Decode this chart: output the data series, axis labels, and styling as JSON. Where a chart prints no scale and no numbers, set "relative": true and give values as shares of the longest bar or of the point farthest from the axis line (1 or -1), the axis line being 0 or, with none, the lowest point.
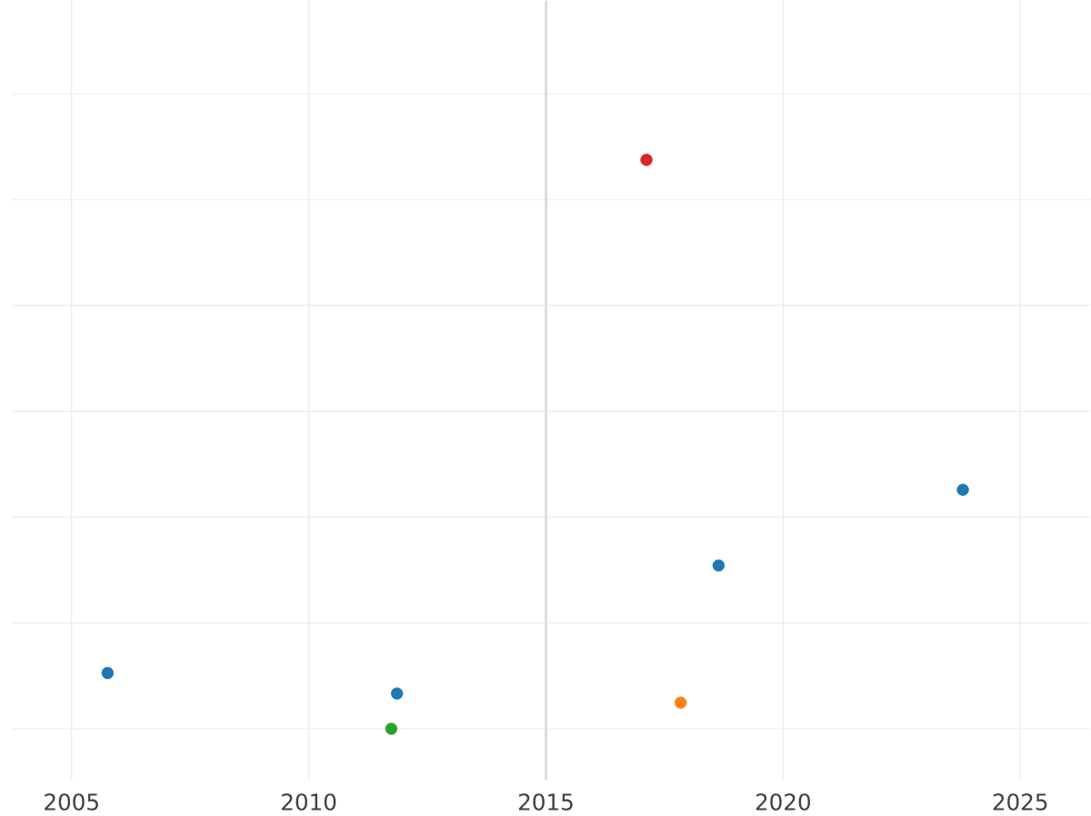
{
  "chart_data": {
    "type": "scatter",
    "relative": true,
    "x": [
      2005.76,
      2011.86,
      2011.74,
      2017.12,
      2017.84,
      2018.64,
      2023.79
    ],
    "values": [
      0.098,
      0.062,
      0,
      1,
      0.046,
      0.287,
      0.42
    ],
    "colors": [
      "#1f77b4",
      "#1f77b4",
      "#2ca02c",
      "#d62728",
      "#ff7f0e",
      "#1f77b4",
      "#1f77b4"
    ],
    "xlim": [
      2003.75,
      2026.48
    ],
    "xticks": [
      2005,
      2010,
      2015,
      2020,
      2025
    ],
    "ref_lines": [
      {
        "axis": "x",
        "value": 2015,
        "color": "#dddddd"
      }
    ],
    "grid": true,
    "marker": "circle"
  }
}
